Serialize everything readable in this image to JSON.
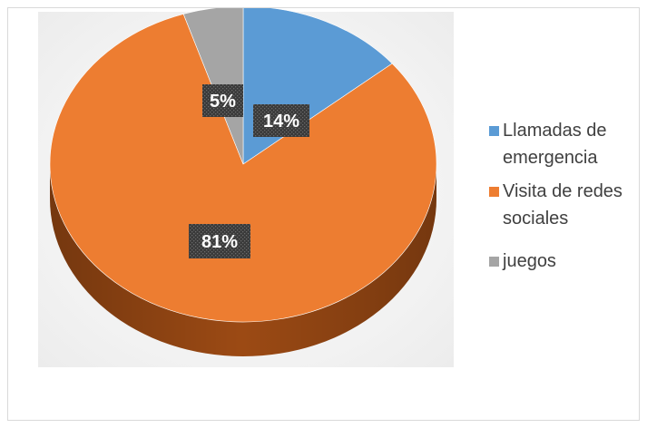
{
  "chart_data": {
    "type": "pie",
    "title": "",
    "slices": [
      {
        "name": "Llamadas de emergencia",
        "legend_lines": [
          "Llamadas de",
          "emergencia"
        ],
        "value": 14,
        "label": "14%",
        "color": "#5B9BD5",
        "side_color": "#41719C"
      },
      {
        "name": "Visita de redes sociales",
        "legend_lines": [
          "Visita de redes",
          "sociales"
        ],
        "value": 81,
        "label": "81%",
        "color": "#ED7D31",
        "side_color": "#9C4A14"
      },
      {
        "name": "juegos",
        "legend_lines": [
          "juegos"
        ],
        "value": 5,
        "label": "5%",
        "color": "#A5A5A5",
        "side_color": "#6E6E6E"
      }
    ],
    "legend_position": "right",
    "style": "3d-pie",
    "data_label_style": "dark-box"
  }
}
